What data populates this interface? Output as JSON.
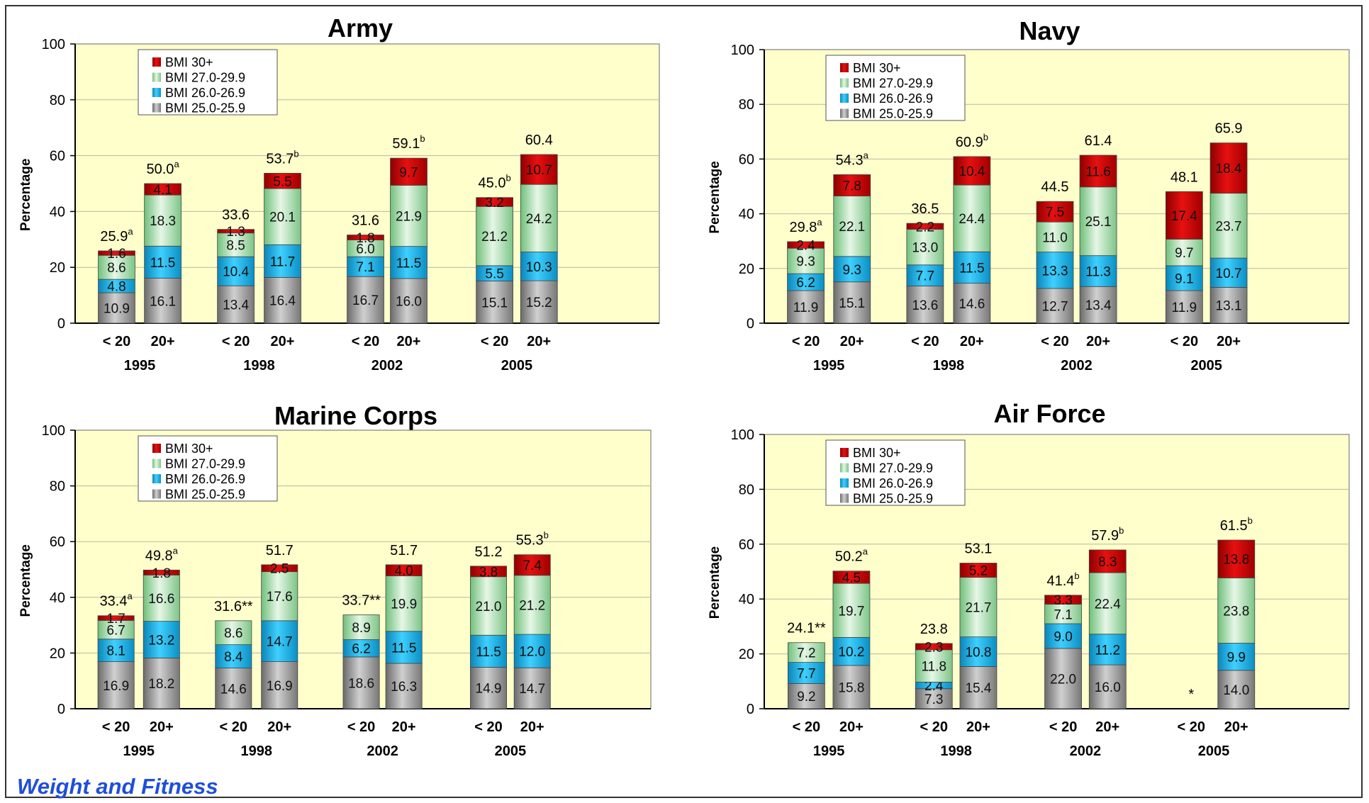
{
  "footer": {
    "label": "Weight and Fitness"
  },
  "colors": {
    "obese": "#d40000",
    "b27": "#a8e0b0",
    "b26": "#19b4e6",
    "b25": "#9a9a9a",
    "plot_bg": "#ffffcc"
  },
  "chart_data": [
    {
      "type": "bar",
      "stacked": true,
      "title": "Army",
      "ylabel": "Percentage",
      "ylim": [
        0,
        100
      ],
      "yticks": [
        0,
        20,
        40,
        60,
        80,
        100
      ],
      "grid": true,
      "legend": {
        "position": "top-left",
        "entries": [
          "BMI 30+",
          "BMI 27.0-29.9",
          "BMI 26.0-26.9",
          "BMI 25.0-25.9"
        ]
      },
      "groups": [
        "1995",
        "1998",
        "2002",
        "2005"
      ],
      "categories": [
        "< 20",
        "20+"
      ],
      "series": [
        {
          "name": "BMI 25.0-25.9",
          "values": [
            [
              10.9,
              16.1
            ],
            [
              13.4,
              16.4
            ],
            [
              16.7,
              16.0
            ],
            [
              15.1,
              15.2
            ]
          ]
        },
        {
          "name": "BMI 26.0-26.9",
          "values": [
            [
              4.8,
              11.5
            ],
            [
              10.4,
              11.7
            ],
            [
              7.1,
              11.5
            ],
            [
              5.5,
              10.3
            ]
          ]
        },
        {
          "name": "BMI 27.0-29.9",
          "values": [
            [
              8.6,
              18.3
            ],
            [
              8.5,
              20.1
            ],
            [
              6.0,
              21.9
            ],
            [
              21.2,
              24.2
            ]
          ]
        },
        {
          "name": "BMI 30+",
          "values": [
            [
              1.6,
              4.1
            ],
            [
              1.3,
              5.5
            ],
            [
              1.8,
              9.7
            ],
            [
              3.2,
              10.7
            ]
          ]
        }
      ],
      "totals": [
        [
          "25.9",
          "50.0"
        ],
        [
          "33.6",
          "53.7"
        ],
        [
          "31.6",
          "59.1"
        ],
        [
          "45.0",
          "60.4"
        ]
      ],
      "total_marks": [
        [
          "a",
          "a"
        ],
        [
          "",
          "b"
        ],
        [
          "",
          "b"
        ],
        [
          "b",
          ""
        ]
      ]
    },
    {
      "type": "bar",
      "stacked": true,
      "title": "Navy",
      "ylabel": "Percentage",
      "ylim": [
        0,
        100
      ],
      "yticks": [
        0,
        20,
        40,
        60,
        80,
        100
      ],
      "grid": true,
      "legend": {
        "position": "top-left",
        "entries": [
          "BMI 30+",
          "BMI 27.0-29.9",
          "BMI 26.0-26.9",
          "BMI 25.0-25.9"
        ]
      },
      "groups": [
        "1995",
        "1998",
        "2002",
        "2005"
      ],
      "categories": [
        "< 20",
        "20+"
      ],
      "series": [
        {
          "name": "BMI 25.0-25.9",
          "values": [
            [
              11.9,
              15.1
            ],
            [
              13.6,
              14.6
            ],
            [
              12.7,
              13.4
            ],
            [
              11.9,
              13.1
            ]
          ]
        },
        {
          "name": "BMI 26.0-26.9",
          "values": [
            [
              6.2,
              9.3
            ],
            [
              7.7,
              11.5
            ],
            [
              13.3,
              11.3
            ],
            [
              9.1,
              10.7
            ]
          ]
        },
        {
          "name": "BMI 27.0-29.9",
          "values": [
            [
              9.3,
              22.1
            ],
            [
              13.0,
              24.4
            ],
            [
              11.0,
              25.1
            ],
            [
              9.7,
              23.7
            ]
          ]
        },
        {
          "name": "BMI 30+",
          "values": [
            [
              2.4,
              7.8
            ],
            [
              2.2,
              10.4
            ],
            [
              7.5,
              11.6
            ],
            [
              17.4,
              18.4
            ]
          ]
        }
      ],
      "totals": [
        [
          "29.8",
          "54.3"
        ],
        [
          "36.5",
          "60.9"
        ],
        [
          "44.5",
          "61.4"
        ],
        [
          "48.1",
          "65.9"
        ]
      ],
      "total_marks": [
        [
          "a",
          "a"
        ],
        [
          "",
          "b"
        ],
        [
          "",
          ""
        ],
        [
          "",
          ""
        ]
      ]
    },
    {
      "type": "bar",
      "stacked": true,
      "title": "Marine Corps",
      "ylabel": "Percentage",
      "ylim": [
        0,
        100
      ],
      "yticks": [
        0,
        20,
        40,
        60,
        80,
        100
      ],
      "grid": true,
      "legend": {
        "position": "top-left",
        "entries": [
          "BMI 30+",
          "BMI 27.0-29.9",
          "BMI 26.0-26.9",
          "BMI 25.0-25.9"
        ]
      },
      "groups": [
        "1995",
        "1998",
        "2002",
        "2005"
      ],
      "categories": [
        "< 20",
        "20+"
      ],
      "series": [
        {
          "name": "BMI 25.0-25.9",
          "values": [
            [
              16.9,
              18.2
            ],
            [
              14.6,
              16.9
            ],
            [
              18.6,
              16.3
            ],
            [
              14.9,
              14.7
            ]
          ]
        },
        {
          "name": "BMI 26.0-26.9",
          "values": [
            [
              8.1,
              13.2
            ],
            [
              8.4,
              14.7
            ],
            [
              6.2,
              11.5
            ],
            [
              11.5,
              12.0
            ]
          ]
        },
        {
          "name": "BMI 27.0-29.9",
          "values": [
            [
              6.7,
              16.6
            ],
            [
              8.6,
              17.6
            ],
            [
              8.9,
              19.9
            ],
            [
              21.0,
              21.2
            ]
          ]
        },
        {
          "name": "BMI 30+",
          "values": [
            [
              1.7,
              1.8
            ],
            [
              null,
              2.5
            ],
            [
              null,
              4.0
            ],
            [
              3.8,
              7.4
            ]
          ]
        }
      ],
      "totals": [
        [
          "33.4",
          "49.8"
        ],
        [
          "31.6**",
          "51.7"
        ],
        [
          "33.7**",
          "51.7"
        ],
        [
          "51.2",
          "55.3"
        ]
      ],
      "total_marks": [
        [
          "a",
          "a"
        ],
        [
          "",
          ""
        ],
        [
          "",
          ""
        ],
        [
          "",
          "b"
        ]
      ]
    },
    {
      "type": "bar",
      "stacked": true,
      "title": "Air Force",
      "ylabel": "Percentage",
      "ylim": [
        0,
        100
      ],
      "yticks": [
        0,
        20,
        40,
        60,
        80,
        100
      ],
      "grid": true,
      "legend": {
        "position": "top-left",
        "entries": [
          "BMI 30+",
          "BMI 27.0-29.9",
          "BMI 26.0-26.9",
          "BMI 25.0-25.9"
        ]
      },
      "groups": [
        "1995",
        "1998",
        "2002",
        "2005"
      ],
      "categories": [
        "< 20",
        "20+"
      ],
      "series": [
        {
          "name": "BMI 25.0-25.9",
          "values": [
            [
              9.2,
              15.8
            ],
            [
              7.3,
              15.4
            ],
            [
              22.0,
              16.0
            ],
            [
              null,
              14.0
            ]
          ]
        },
        {
          "name": "BMI 26.0-26.9",
          "values": [
            [
              7.7,
              10.2
            ],
            [
              2.4,
              10.8
            ],
            [
              9.0,
              11.2
            ],
            [
              null,
              9.9
            ]
          ]
        },
        {
          "name": "BMI 27.0-29.9",
          "values": [
            [
              7.2,
              19.7
            ],
            [
              11.8,
              21.7
            ],
            [
              7.1,
              22.4
            ],
            [
              null,
              23.8
            ]
          ]
        },
        {
          "name": "BMI 30+",
          "values": [
            [
              null,
              4.5
            ],
            [
              2.3,
              5.2
            ],
            [
              3.3,
              8.3
            ],
            [
              null,
              13.8
            ]
          ]
        }
      ],
      "totals": [
        [
          "24.1**",
          "50.2"
        ],
        [
          "23.8",
          "53.1"
        ],
        [
          "41.4",
          "57.9"
        ],
        [
          "*",
          "61.5"
        ]
      ],
      "total_marks": [
        [
          "",
          "a"
        ],
        [
          "",
          ""
        ],
        [
          "b",
          "b"
        ],
        [
          "",
          "b"
        ]
      ]
    }
  ]
}
